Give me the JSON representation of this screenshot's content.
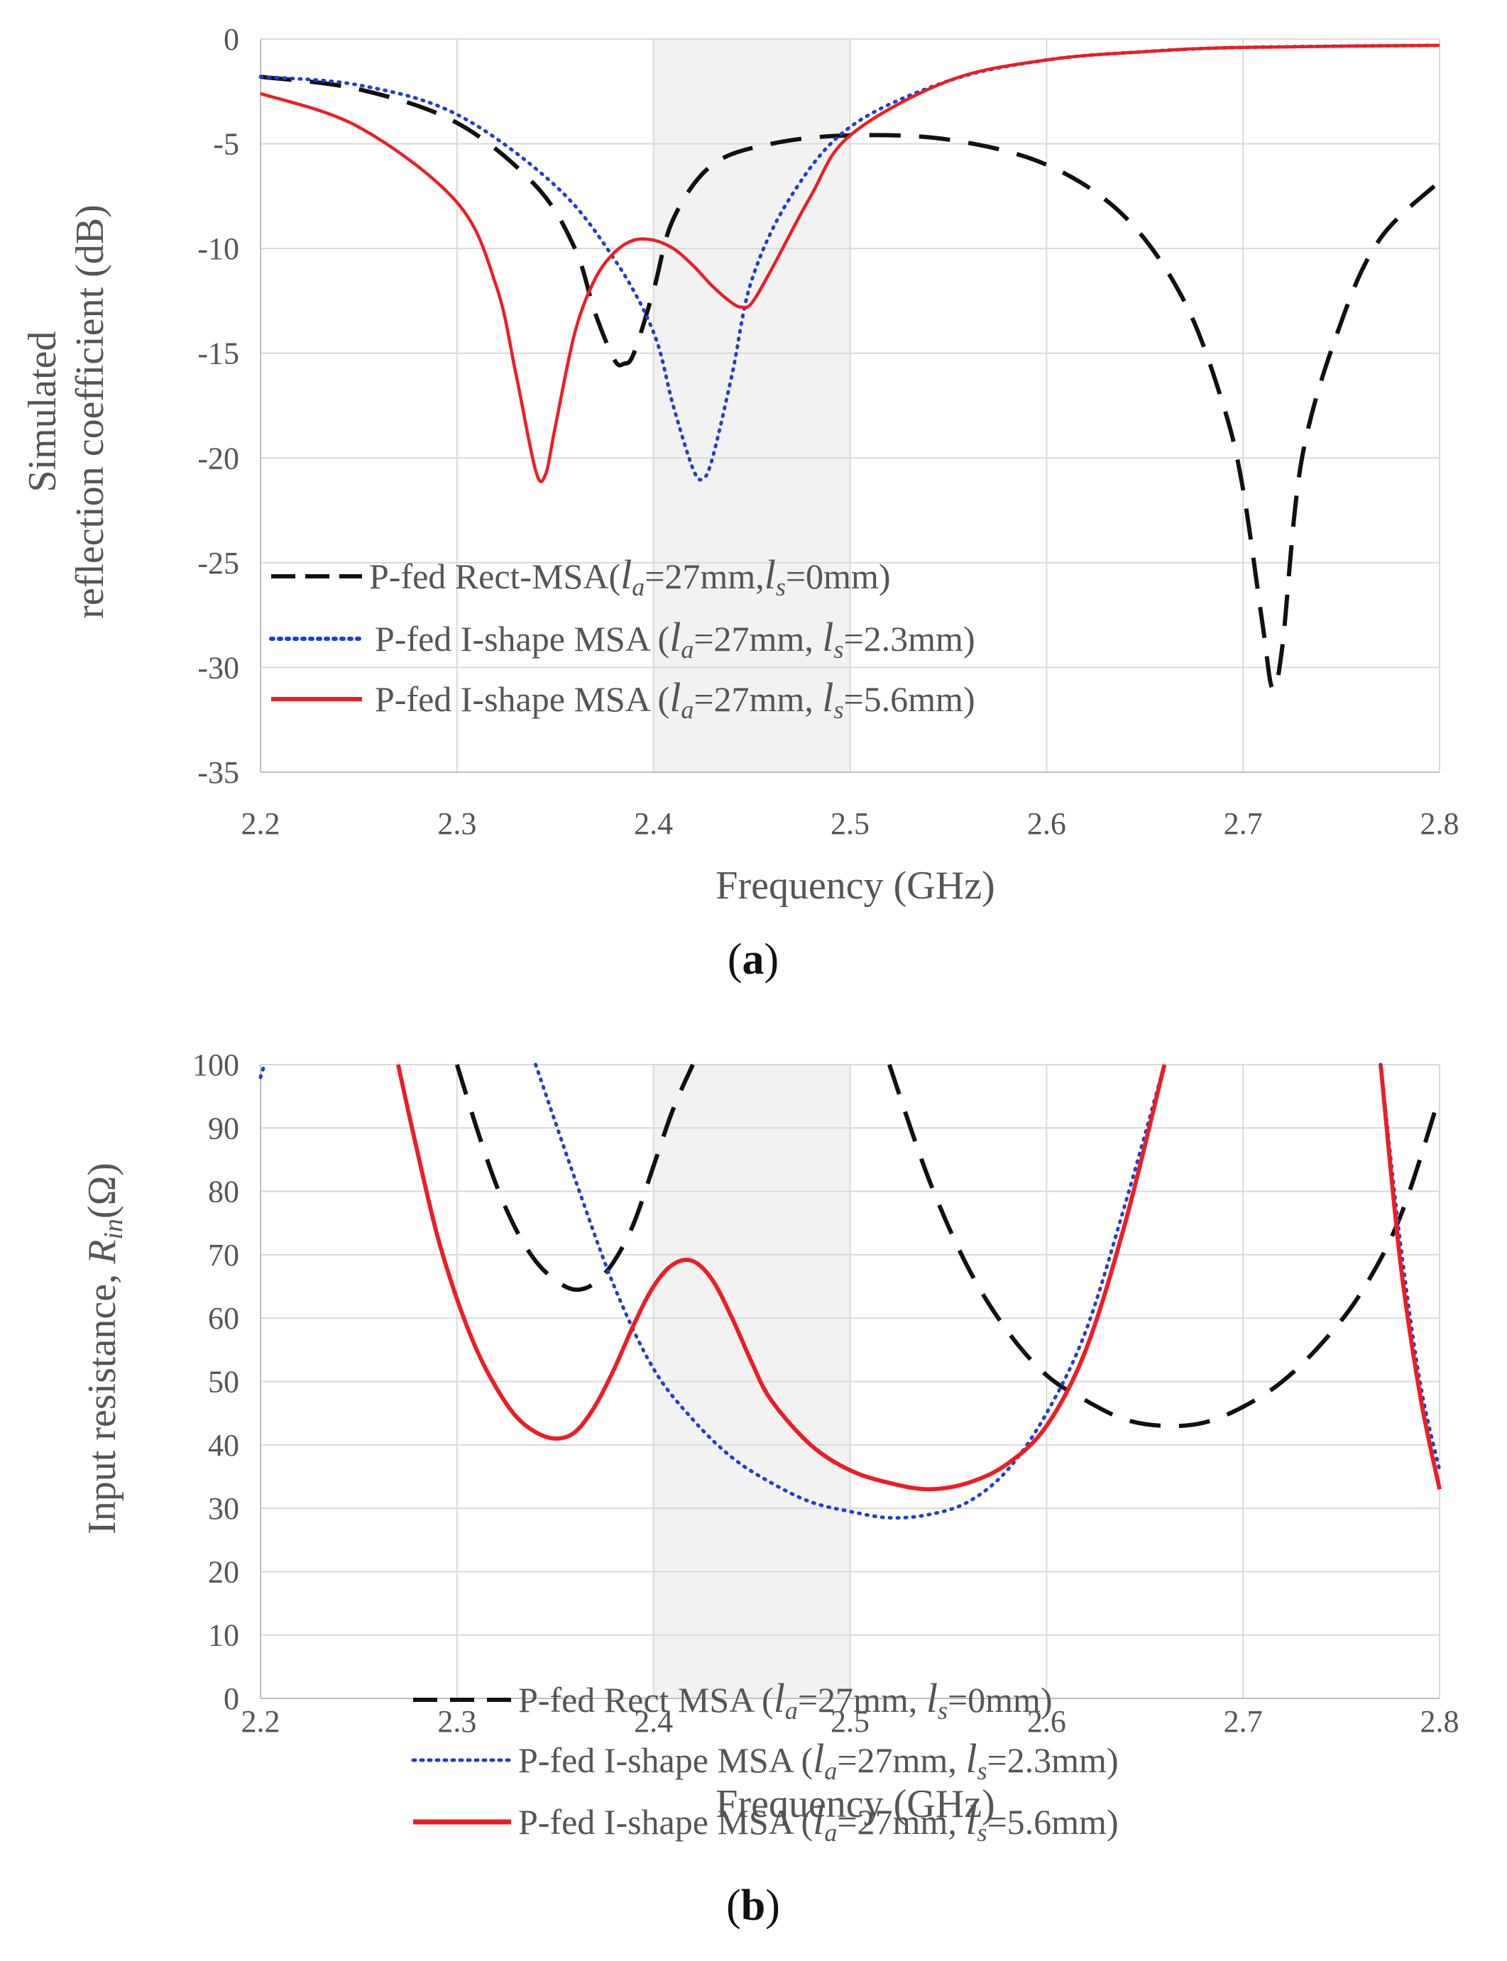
{
  "chart_data": [
    {
      "id": "a",
      "type": "line",
      "panel_label_open": "(",
      "panel_label_letter": "a",
      "panel_label_close": ")",
      "xlabel": "Frequency (GHz)",
      "ylabel_line1": "Simulated",
      "ylabel_line2": "reflection coefficient (dB)",
      "xlim": [
        2.2,
        2.8
      ],
      "ylim": [
        -35,
        0
      ],
      "xticks": [
        "2.2",
        "2.3",
        "2.4",
        "2.5",
        "2.6",
        "2.7",
        "2.8"
      ],
      "yticks": [
        "0",
        "-5",
        "-10",
        "-15",
        "-20",
        "-25",
        "-30",
        "-35"
      ],
      "shaded_band": [
        2.4,
        2.5
      ],
      "series": [
        {
          "name": "P-fed Rect-MSA",
          "legend": {
            "pre": "P-fed Rect-MSA(",
            "la": "=27mm,",
            "ls": "=0mm)"
          },
          "color": "#111111",
          "style": "dashed",
          "x": [
            2.2,
            2.25,
            2.3,
            2.34,
            2.36,
            2.37,
            2.38,
            2.385,
            2.39,
            2.4,
            2.41,
            2.43,
            2.46,
            2.5,
            2.55,
            2.6,
            2.64,
            2.67,
            2.69,
            2.7,
            2.71,
            2.715,
            2.72,
            2.73,
            2.75,
            2.77,
            2.8
          ],
          "y": [
            -1.8,
            -2.4,
            -4.0,
            -7.0,
            -10.0,
            -13.0,
            -15.3,
            -15.5,
            -15.0,
            -12.0,
            -8.6,
            -6.0,
            -5.0,
            -4.6,
            -4.8,
            -6.0,
            -8.5,
            -12.5,
            -17.5,
            -21.5,
            -28.0,
            -31.0,
            -29.0,
            -20.0,
            -13.5,
            -9.5,
            -6.8
          ]
        },
        {
          "name": "P-fed I-shape MSA (ls=2.3mm)",
          "legend": {
            "pre": "P-fed I-shape MSA (",
            "la": "=27mm,",
            "ls": "=2.3mm)"
          },
          "color": "#1f3fcf",
          "style": "dotted",
          "x": [
            2.2,
            2.25,
            2.3,
            2.35,
            2.38,
            2.4,
            2.41,
            2.42,
            2.425,
            2.43,
            2.44,
            2.45,
            2.47,
            2.5,
            2.55,
            2.6,
            2.65,
            2.7,
            2.8
          ],
          "y": [
            -1.8,
            -2.2,
            -3.6,
            -7.0,
            -10.5,
            -14.0,
            -17.5,
            -20.5,
            -21.0,
            -20.0,
            -16.0,
            -11.5,
            -7.5,
            -4.2,
            -2.0,
            -1.0,
            -0.6,
            -0.4,
            -0.3
          ]
        },
        {
          "name": "P-fed I-shape MSA (ls=5.6mm)",
          "legend": {
            "pre": "P-fed I-shape MSA (",
            "la": "=27mm,",
            "ls": "=5.6mm)"
          },
          "color": "#ee1c25",
          "style": "solid",
          "x": [
            2.2,
            2.25,
            2.3,
            2.32,
            2.33,
            2.34,
            2.345,
            2.35,
            2.36,
            2.37,
            2.38,
            2.39,
            2.4,
            2.41,
            2.42,
            2.43,
            2.44,
            2.445,
            2.45,
            2.46,
            2.48,
            2.5,
            2.55,
            2.6,
            2.65,
            2.7,
            2.8
          ],
          "y": [
            -2.6,
            -4.2,
            -7.8,
            -11.8,
            -16.0,
            -20.6,
            -20.8,
            -18.5,
            -14.0,
            -11.5,
            -10.2,
            -9.6,
            -9.6,
            -10.0,
            -10.8,
            -11.8,
            -12.6,
            -12.8,
            -12.6,
            -11.0,
            -7.5,
            -4.6,
            -2.0,
            -1.0,
            -0.6,
            -0.4,
            -0.3
          ]
        }
      ]
    },
    {
      "id": "b",
      "type": "line",
      "panel_label_open": "(",
      "panel_label_letter": "b",
      "panel_label_close": ")",
      "xlabel": "Frequency (GHz)",
      "ylabel_pre": "Input resistance, ",
      "ylabel_R": "R",
      "ylabel_sub": "in",
      "ylabel_post": "(Ω)",
      "xlim": [
        2.2,
        2.8
      ],
      "ylim": [
        0,
        100
      ],
      "xticks": [
        "2.2",
        "2.3",
        "2.4",
        "2.5",
        "2.6",
        "2.7",
        "2.8"
      ],
      "yticks": [
        "100",
        "90",
        "80",
        "70",
        "60",
        "50",
        "40",
        "30",
        "20",
        "10",
        "0"
      ],
      "shaded_band": [
        2.4,
        2.5
      ],
      "series": [
        {
          "name": "P-fed Rect MSA",
          "legend": {
            "pre": "P-fed Rect MSA (",
            "la": "=27mm,",
            "ls": "=0mm)"
          },
          "color": "#111111",
          "style": "dashed",
          "segments": [
            {
              "x": [
                2.3,
                2.31,
                2.32,
                2.33,
                2.34,
                2.35,
                2.36,
                2.37,
                2.38,
                2.39,
                2.4,
                2.41,
                2.42
              ],
              "y": [
                100,
                90,
                81,
                74,
                69,
                66,
                64.5,
                65.5,
                69,
                75,
                84,
                93,
                100
              ]
            },
            {
              "x": [
                2.52,
                2.54,
                2.56,
                2.58,
                2.6,
                2.62,
                2.64,
                2.66,
                2.68,
                2.7,
                2.72,
                2.74,
                2.76,
                2.78,
                2.8
              ],
              "y": [
                100,
                82,
                68,
                58,
                51,
                47,
                44,
                43,
                43.5,
                46,
                50,
                56,
                64,
                76,
                95
              ]
            }
          ]
        },
        {
          "name": "P-fed I-shape MSA (ls=2.3mm)",
          "legend": {
            "pre": "P-fed I-shape MSA (",
            "la": "=27mm,",
            "ls": "=2.3mm)"
          },
          "color": "#1f3fcf",
          "style": "dotted",
          "segments": [
            {
              "x": [
                2.2,
                2.202
              ],
              "y": [
                98,
                100
              ]
            },
            {
              "x": [
                2.34,
                2.36,
                2.38,
                2.4,
                2.42,
                2.44,
                2.46,
                2.48,
                2.5,
                2.52,
                2.54,
                2.56,
                2.58,
                2.6,
                2.62,
                2.64,
                2.66
              ],
              "y": [
                100,
                82,
                65,
                52,
                44,
                38,
                34,
                31,
                29.5,
                28.5,
                29,
                31,
                36,
                45,
                58,
                78,
                100
              ]
            },
            {
              "x": [
                2.77,
                2.78,
                2.79,
                2.8
              ],
              "y": [
                100,
                72,
                50,
                36
              ]
            }
          ]
        },
        {
          "name": "P-fed I-shape MSA (ls=5.6mm)",
          "legend": {
            "pre": "P-fed I-shape MSA (",
            "la": "=27mm,",
            "ls": "=5.6mm)"
          },
          "color": "#ee1c25",
          "style": "solid",
          "segments": [
            {
              "x": [
                2.27,
                2.28,
                2.29,
                2.3,
                2.31,
                2.32,
                2.33,
                2.34,
                2.35,
                2.36,
                2.37,
                2.38,
                2.39,
                2.4,
                2.41,
                2.42,
                2.43,
                2.44,
                2.45,
                2.46,
                2.48,
                2.5,
                2.52,
                2.54,
                2.56,
                2.58,
                2.6,
                2.62,
                2.64,
                2.66
              ],
              "y": [
                100,
                86,
                73,
                63,
                55,
                49,
                44.5,
                42,
                41,
                42,
                46,
                52,
                59,
                65,
                68.5,
                69,
                66,
                60,
                53,
                47,
                40,
                36,
                34,
                33,
                34,
                37,
                43,
                55,
                75,
                100
              ]
            },
            {
              "x": [
                2.77,
                2.78,
                2.79,
                2.8
              ],
              "y": [
                100,
                69,
                48,
                33
              ]
            }
          ]
        }
      ]
    }
  ]
}
